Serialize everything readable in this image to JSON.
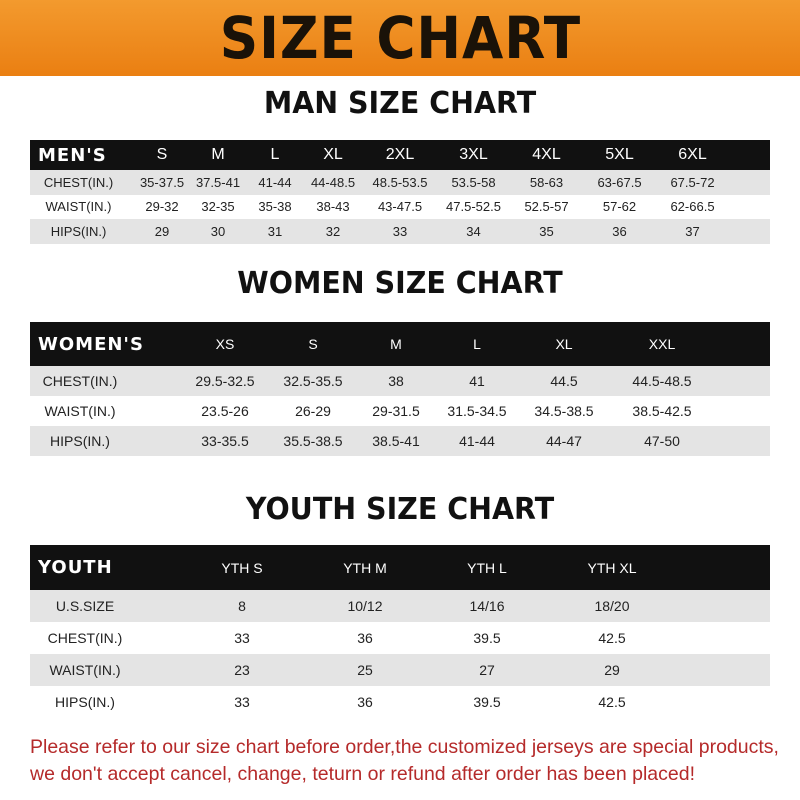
{
  "banner_title": "SIZE CHART",
  "men": {
    "title": "MAN SIZE CHART",
    "header_label": "MEN'S",
    "sizes": [
      "S",
      "M",
      "L",
      "XL",
      "2XL",
      "3XL",
      "4XL",
      "5XL",
      "6XL"
    ],
    "rows": [
      {
        "label": "CHEST(IN.)",
        "values": [
          "35-37.5",
          "37.5-41",
          "41-44",
          "44-48.5",
          "48.5-53.5",
          "53.5-58",
          "58-63",
          "63-67.5",
          "67.5-72"
        ]
      },
      {
        "label": "WAIST(IN.)",
        "values": [
          "29-32",
          "32-35",
          "35-38",
          "38-43",
          "43-47.5",
          "47.5-52.5",
          "52.5-57",
          "57-62",
          "62-66.5"
        ]
      },
      {
        "label": "HIPS(IN.)",
        "values": [
          "29",
          "30",
          "31",
          "32",
          "33",
          "34",
          "35",
          "36",
          "37"
        ]
      }
    ]
  },
  "women": {
    "title": "WOMEN SIZE CHART",
    "header_label": "WOMEN'S",
    "sizes": [
      "XS",
      "S",
      "M",
      "L",
      "XL",
      "XXL"
    ],
    "rows": [
      {
        "label": "CHEST(IN.)",
        "values": [
          "29.5-32.5",
          "32.5-35.5",
          "38",
          "41",
          "44.5",
          "44.5-48.5"
        ]
      },
      {
        "label": "WAIST(IN.)",
        "values": [
          "23.5-26",
          "26-29",
          "29-31.5",
          "31.5-34.5",
          "34.5-38.5",
          "38.5-42.5"
        ]
      },
      {
        "label": "HIPS(IN.)",
        "values": [
          "33-35.5",
          "35.5-38.5",
          "38.5-41",
          "41-44",
          "44-47",
          "47-50"
        ]
      }
    ]
  },
  "youth": {
    "title": "YOUTH SIZE CHART",
    "header_label": "YOUTH",
    "sizes": [
      "YTH S",
      "YTH M",
      "YTH L",
      "YTH XL"
    ],
    "rows": [
      {
        "label": "U.S.SIZE",
        "values": [
          "8",
          "10/12",
          "14/16",
          "18/20"
        ]
      },
      {
        "label": "CHEST(IN.)",
        "values": [
          "33",
          "36",
          "39.5",
          "42.5"
        ]
      },
      {
        "label": "WAIST(IN.)",
        "values": [
          "23",
          "25",
          "27",
          "29"
        ]
      },
      {
        "label": "HIPS(IN.)",
        "values": [
          "33",
          "36",
          "39.5",
          "42.5"
        ]
      }
    ]
  },
  "notice": {
    "line1": "Please refer to our size chart before order,the customized jerseys are special products,",
    "line2": "we don't accept cancel, change, teturn or refund after order has been placed!"
  },
  "colors": {
    "banner": "#ef8a1f",
    "header_row": "#111111",
    "stripe": "#e4e4e4",
    "notice": "#b52a2a"
  }
}
